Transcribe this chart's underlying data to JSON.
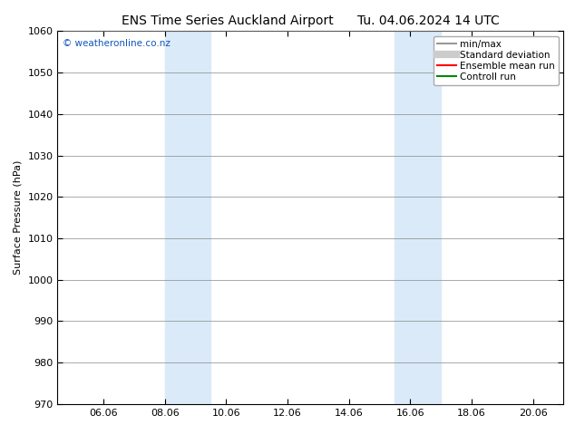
{
  "title": "ENS Time Series Auckland Airport      Tu. 04.06.2024 14 UTC",
  "ylabel": "Surface Pressure (hPa)",
  "ylim": [
    970,
    1060
  ],
  "yticks": [
    970,
    980,
    990,
    1000,
    1010,
    1020,
    1030,
    1040,
    1050,
    1060
  ],
  "xlim_start": 4.5,
  "xlim_end": 21.0,
  "xtick_labels": [
    "06.06",
    "08.06",
    "10.06",
    "12.06",
    "14.06",
    "16.06",
    "18.06",
    "20.06"
  ],
  "xtick_positions": [
    6.0,
    8.0,
    10.0,
    12.0,
    14.0,
    16.0,
    18.0,
    20.0
  ],
  "shaded_regions": [
    {
      "xmin": 8.0,
      "xmax": 9.5,
      "color": "#daeaf8"
    },
    {
      "xmin": 15.5,
      "xmax": 17.0,
      "color": "#daeaf8"
    }
  ],
  "watermark_text": "© weatheronline.co.nz",
  "watermark_color": "#1155bb",
  "legend_entries": [
    {
      "label": "min/max",
      "color": "#999999",
      "lw": 1.5,
      "style": "solid"
    },
    {
      "label": "Standard deviation",
      "color": "#cccccc",
      "lw": 6,
      "style": "solid"
    },
    {
      "label": "Ensemble mean run",
      "color": "#ff0000",
      "lw": 1.5,
      "style": "solid"
    },
    {
      "label": "Controll run",
      "color": "#008800",
      "lw": 1.5,
      "style": "solid"
    }
  ],
  "background_color": "#ffffff",
  "grid_color": "#888888",
  "title_fontsize": 10,
  "label_fontsize": 8,
  "tick_fontsize": 8,
  "legend_fontsize": 7.5
}
